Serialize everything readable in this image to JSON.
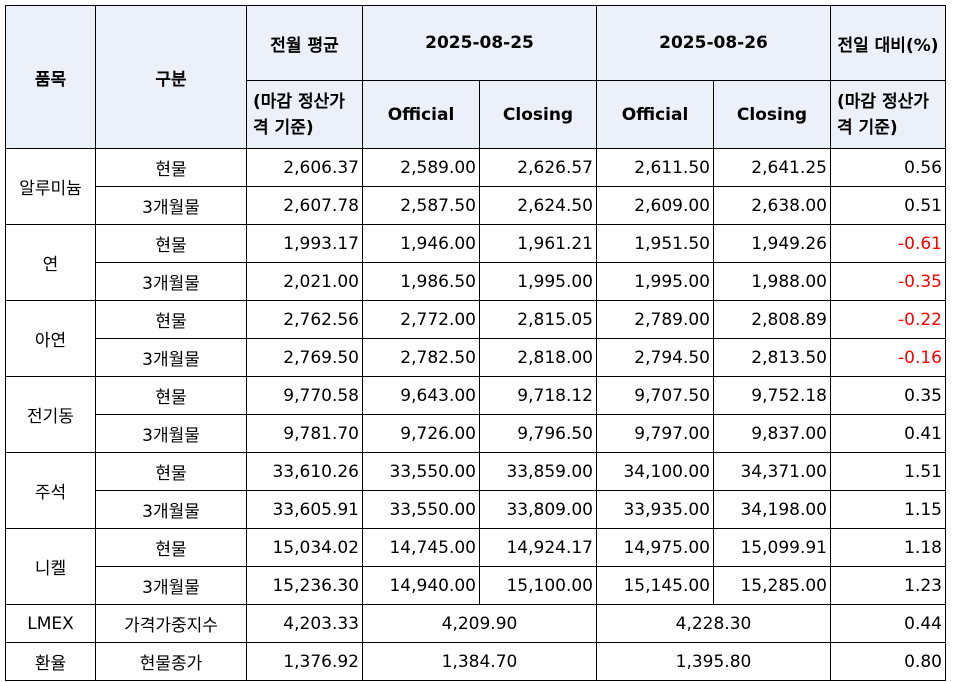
{
  "header": {
    "item": "품목",
    "category": "구분",
    "prev_month_avg": "전월 평균",
    "basis_settlement": "(마감 정산가격 기준)",
    "date1": "2025-08-25",
    "date2": "2025-08-26",
    "dod_change": "전일 대비(%)",
    "official": "Official",
    "closing": "Closing"
  },
  "groups": [
    {
      "name": "알루미늄",
      "rows": [
        {
          "type": "현물",
          "avg": "2,606.37",
          "d1_official": "2,589.00",
          "d1_closing": "2,626.57",
          "d2_official": "2,611.50",
          "d2_closing": "2,641.25",
          "change": "0.56"
        },
        {
          "type": "3개월물",
          "avg": "2,607.78",
          "d1_official": "2,587.50",
          "d1_closing": "2,624.50",
          "d2_official": "2,609.00",
          "d2_closing": "2,638.00",
          "change": "0.51"
        }
      ]
    },
    {
      "name": "연",
      "rows": [
        {
          "type": "현물",
          "avg": "1,993.17",
          "d1_official": "1,946.00",
          "d1_closing": "1,961.21",
          "d2_official": "1,951.50",
          "d2_closing": "1,949.26",
          "change": "-0.61"
        },
        {
          "type": "3개월물",
          "avg": "2,021.00",
          "d1_official": "1,986.50",
          "d1_closing": "1,995.00",
          "d2_official": "1,995.00",
          "d2_closing": "1,988.00",
          "change": "-0.35"
        }
      ]
    },
    {
      "name": "아연",
      "rows": [
        {
          "type": "현물",
          "avg": "2,762.56",
          "d1_official": "2,772.00",
          "d1_closing": "2,815.05",
          "d2_official": "2,789.00",
          "d2_closing": "2,808.89",
          "change": "-0.22"
        },
        {
          "type": "3개월물",
          "avg": "2,769.50",
          "d1_official": "2,782.50",
          "d1_closing": "2,818.00",
          "d2_official": "2,794.50",
          "d2_closing": "2,813.50",
          "change": "-0.16"
        }
      ]
    },
    {
      "name": "전기동",
      "rows": [
        {
          "type": "현물",
          "avg": "9,770.58",
          "d1_official": "9,643.00",
          "d1_closing": "9,718.12",
          "d2_official": "9,707.50",
          "d2_closing": "9,752.18",
          "change": "0.35"
        },
        {
          "type": "3개월물",
          "avg": "9,781.70",
          "d1_official": "9,726.00",
          "d1_closing": "9,796.50",
          "d2_official": "9,797.00",
          "d2_closing": "9,837.00",
          "change": "0.41"
        }
      ]
    },
    {
      "name": "주석",
      "rows": [
        {
          "type": "현물",
          "avg": "33,610.26",
          "d1_official": "33,550.00",
          "d1_closing": "33,859.00",
          "d2_official": "34,100.00",
          "d2_closing": "34,371.00",
          "change": "1.51"
        },
        {
          "type": "3개월물",
          "avg": "33,605.91",
          "d1_official": "33,550.00",
          "d1_closing": "33,809.00",
          "d2_official": "33,935.00",
          "d2_closing": "34,198.00",
          "change": "1.15"
        }
      ]
    },
    {
      "name": "니켈",
      "rows": [
        {
          "type": "현물",
          "avg": "15,034.02",
          "d1_official": "14,745.00",
          "d1_closing": "14,924.17",
          "d2_official": "14,975.00",
          "d2_closing": "15,099.91",
          "change": "1.18"
        },
        {
          "type": "3개월물",
          "avg": "15,236.30",
          "d1_official": "14,940.00",
          "d1_closing": "15,100.00",
          "d2_official": "15,145.00",
          "d2_closing": "15,285.00",
          "change": "1.23"
        }
      ]
    }
  ],
  "single_rows": [
    {
      "name": "LMEX",
      "type": "가격가중지수",
      "avg": "4,203.33",
      "d1": "4,209.90",
      "d2": "4,228.30",
      "change": "0.44"
    },
    {
      "name": "환율",
      "type": "현물종가",
      "avg": "1,376.92",
      "d1": "1,384.70",
      "d2": "1,395.80",
      "change": "0.80"
    }
  ],
  "colors": {
    "header_bg": "#ecf0f8",
    "negative": "#ff0000",
    "border": "#000000"
  }
}
